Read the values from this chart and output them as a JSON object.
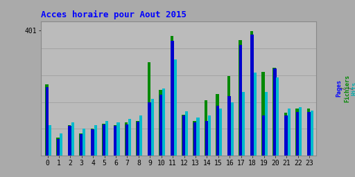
{
  "title": "Acces horaire pour Aout 2015",
  "categories": [
    0,
    1,
    2,
    3,
    4,
    5,
    6,
    7,
    8,
    9,
    10,
    11,
    12,
    13,
    14,
    15,
    16,
    17,
    18,
    19,
    20,
    21,
    22,
    23
  ],
  "pages": [
    220,
    55,
    95,
    70,
    85,
    100,
    95,
    100,
    110,
    170,
    195,
    368,
    128,
    108,
    112,
    160,
    190,
    355,
    388,
    128,
    278,
    128,
    140,
    140
  ],
  "fichiers": [
    228,
    58,
    98,
    72,
    88,
    102,
    98,
    108,
    112,
    298,
    210,
    382,
    132,
    112,
    178,
    198,
    255,
    370,
    398,
    268,
    282,
    138,
    150,
    150
  ],
  "hits": [
    98,
    72,
    108,
    88,
    98,
    112,
    108,
    118,
    128,
    182,
    215,
    308,
    142,
    122,
    128,
    152,
    170,
    205,
    265,
    205,
    250,
    152,
    155,
    145
  ],
  "color_pages": "#0000cc",
  "color_fichiers": "#008800",
  "color_hits": "#00bbcc",
  "bg_fig": "#aaaaaa",
  "bg_ax": "#bbbbbb",
  "title_color": "#0000ff",
  "color_ylabel_pages": "#0000ff",
  "color_ylabel_fichiers": "#008800",
  "color_ylabel_hits": "#00aaaa",
  "ylim_max": 430,
  "ytick_val": 401,
  "bar_width": 0.25
}
